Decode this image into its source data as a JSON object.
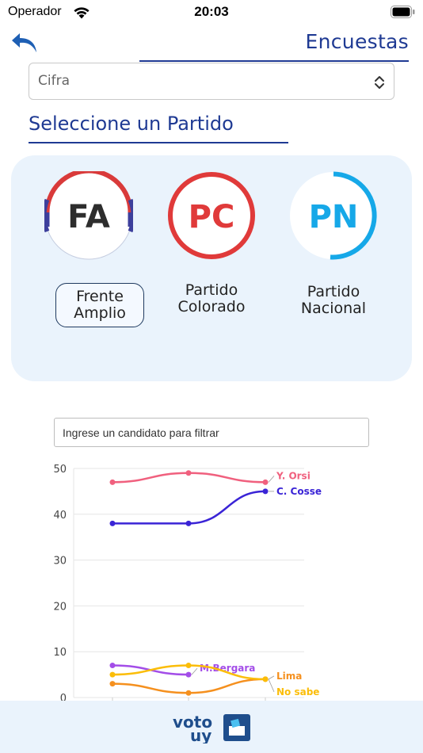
{
  "status_bar": {
    "carrier": "Operador",
    "time": "20:03"
  },
  "header": {
    "back_icon": "back-arrow-icon",
    "title": "Encuestas"
  },
  "select": {
    "value": "Cifra",
    "icon": "chevron-up-down-icon"
  },
  "section": {
    "heading": "Seleccione un Partido"
  },
  "parties": [
    {
      "abbr": "FA",
      "name_line1": "Frente",
      "name_line2": "Amplio",
      "selected": true,
      "colors": [
        "#d93a3a",
        "#3d3f9c"
      ]
    },
    {
      "abbr": "PC",
      "name_line1": "Partido",
      "name_line2": "Colorado",
      "selected": false,
      "colors": [
        "#e03a3a"
      ]
    },
    {
      "abbr": "PN",
      "name_line1": "Partido",
      "name_line2": "Nacional",
      "selected": false,
      "colors": [
        "#16a8e8"
      ]
    }
  ],
  "filter": {
    "placeholder": "Ingrese un candidato para filtrar"
  },
  "chart_data": {
    "type": "line",
    "x": [
      1,
      2,
      3
    ],
    "ylim": [
      0,
      50
    ],
    "yticks": [
      0,
      10,
      20,
      30,
      40,
      50
    ],
    "grid": true,
    "series": [
      {
        "name": "Y. Orsi",
        "values": [
          47,
          49,
          47
        ],
        "color": "#f0607e"
      },
      {
        "name": "C. Cosse",
        "values": [
          38,
          38,
          45
        ],
        "color": "#3a24d6"
      },
      {
        "name": "M.Bergara",
        "values": [
          7,
          5,
          null
        ],
        "color": "#a34de8"
      },
      {
        "name": "Lima",
        "values": [
          3,
          1,
          4
        ],
        "color": "#f5901e"
      },
      {
        "name": "No sabe",
        "values": [
          5,
          7,
          4
        ],
        "color": "#fbbd08"
      }
    ]
  },
  "footer": {
    "logo_line1": "voto",
    "logo_line2": "uy",
    "logo_icon": "ballot-box-icon"
  }
}
